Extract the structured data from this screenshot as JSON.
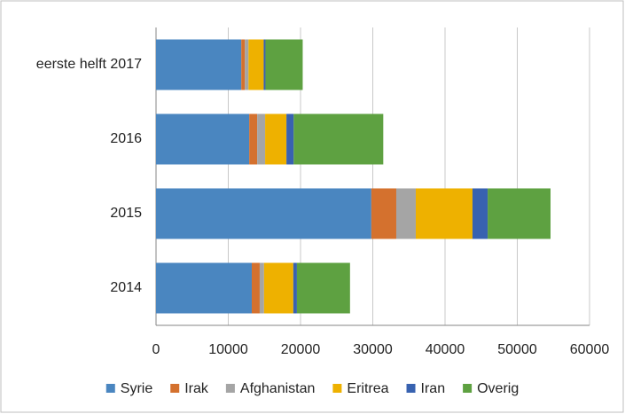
{
  "chart_data": {
    "type": "stacked-bar-horizontal",
    "categories": [
      "2014",
      "2015",
      "2016",
      "eerste helft 2017"
    ],
    "series": [
      {
        "name": "Syrie",
        "color": "#4a86c0",
        "values": [
          13250,
          29800,
          12900,
          11800
        ]
      },
      {
        "name": "Irak",
        "color": "#d4712e",
        "values": [
          1100,
          3450,
          1100,
          500
        ]
      },
      {
        "name": "Afghanistan",
        "color": "#a5a5a5",
        "values": [
          600,
          2700,
          1100,
          500
        ]
      },
      {
        "name": "Eritrea",
        "color": "#eeb100",
        "values": [
          4050,
          7850,
          2950,
          2100
        ]
      },
      {
        "name": "Iran",
        "color": "#3862b0",
        "values": [
          500,
          2100,
          1000,
          250
        ]
      },
      {
        "name": "Overig",
        "color": "#5ea141",
        "values": [
          7350,
          8700,
          12400,
          5150
        ]
      }
    ],
    "xlim": [
      0,
      60000
    ],
    "xticks": [
      0,
      10000,
      20000,
      30000,
      40000,
      50000,
      60000
    ],
    "grid": true,
    "legend": "bottom"
  }
}
